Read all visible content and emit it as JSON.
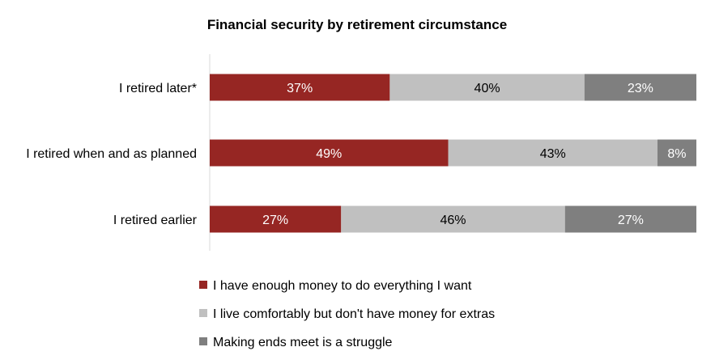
{
  "chart_data": {
    "type": "bar",
    "orientation": "horizontal",
    "stacked": true,
    "title": "Financial security by retirement circumstance",
    "categories": [
      "I retired later*",
      "I retired when and as planned",
      "I retired earlier"
    ],
    "series": [
      {
        "name": "I have enough money to do everything I want",
        "values": [
          37,
          49,
          27
        ],
        "labels": [
          "37%",
          "49%",
          "27%"
        ],
        "color": "#962623",
        "label_color": "#ffffff"
      },
      {
        "name": "I live comfortably but don't have money for extras",
        "values": [
          40,
          43,
          46
        ],
        "labels": [
          "40%",
          "43%",
          "46%"
        ],
        "color": "#c0c0c0",
        "label_color": "#000000"
      },
      {
        "name": "Making ends meet is a struggle",
        "values": [
          23,
          8,
          27
        ],
        "labels": [
          "23%",
          "8%",
          "27%"
        ],
        "color": "#7f7f7f",
        "label_color": "#ffffff"
      }
    ],
    "xlim": [
      0,
      100
    ],
    "xlabel": "",
    "ylabel": "",
    "grid": false,
    "legend": "bottom"
  }
}
